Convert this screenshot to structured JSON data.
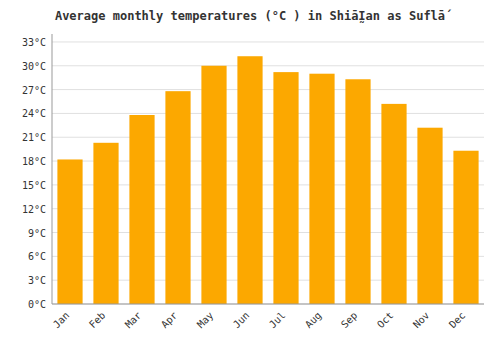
{
  "chart_data": {
    "type": "bar",
    "title": "Average monthly temperatures (°C ) in ShiāḬan as Suflā́",
    "categories": [
      "Jan",
      "Feb",
      "Mar",
      "Apr",
      "May",
      "Jun",
      "Jul",
      "Aug",
      "Sep",
      "Oct",
      "Nov",
      "Dec"
    ],
    "values": [
      18.2,
      20.3,
      23.8,
      26.8,
      30.0,
      31.2,
      29.2,
      29.0,
      28.3,
      25.2,
      22.2,
      19.3
    ],
    "color": "#FCA800",
    "ylim": [
      0,
      34
    ],
    "yticks": [
      {
        "value": 0,
        "label": "0°C"
      },
      {
        "value": 3,
        "label": "3°C"
      },
      {
        "value": 6,
        "label": "6°C"
      },
      {
        "value": 9,
        "label": "9°C"
      },
      {
        "value": 12,
        "label": "12°C"
      },
      {
        "value": 15,
        "label": "15°C"
      },
      {
        "value": 18,
        "label": "18°C"
      },
      {
        "value": 21,
        "label": "21°C"
      },
      {
        "value": 24,
        "label": "24°C"
      },
      {
        "value": 27,
        "label": "27°C"
      },
      {
        "value": 30,
        "label": "30°C"
      },
      {
        "value": 33,
        "label": "33°C"
      }
    ],
    "grid": true
  }
}
